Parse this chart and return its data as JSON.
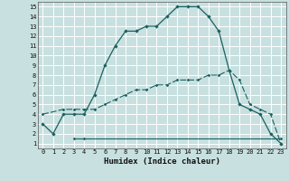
{
  "xlabel": "Humidex (Indice chaleur)",
  "bg_color": "#c8e0e0",
  "grid_color": "#ffffff",
  "line_color": "#1a6060",
  "xlim": [
    -0.5,
    23.5
  ],
  "ylim": [
    0.5,
    15.5
  ],
  "xticks": [
    0,
    1,
    2,
    3,
    4,
    5,
    6,
    7,
    8,
    9,
    10,
    11,
    12,
    13,
    14,
    15,
    16,
    17,
    18,
    19,
    20,
    21,
    22,
    23
  ],
  "yticks": [
    1,
    2,
    3,
    4,
    5,
    6,
    7,
    8,
    9,
    10,
    11,
    12,
    13,
    14,
    15
  ],
  "line1_x": [
    0,
    1,
    2,
    3,
    4,
    5,
    6,
    7,
    8,
    9,
    10,
    11,
    12,
    13,
    14,
    15,
    16,
    17,
    18,
    19,
    20,
    21,
    22,
    23
  ],
  "line1_y": [
    3,
    2,
    4,
    4,
    4,
    6,
    9,
    11,
    12.5,
    12.5,
    13,
    13,
    14,
    15,
    15,
    15,
    14,
    12.5,
    8.5,
    5,
    4.5,
    4,
    2,
    1
  ],
  "line2_x": [
    0,
    2,
    3,
    4,
    5,
    6,
    7,
    8,
    9,
    10,
    11,
    12,
    13,
    14,
    15,
    16,
    17,
    18,
    19,
    20,
    21,
    22,
    23
  ],
  "line2_y": [
    4,
    4.5,
    4.5,
    4.5,
    4.5,
    5,
    5.5,
    6,
    6.5,
    6.5,
    7,
    7,
    7.5,
    7.5,
    7.5,
    8,
    8,
    8.5,
    7.5,
    5,
    4.5,
    4,
    1
  ],
  "line3_x": [
    3,
    4,
    23
  ],
  "line3_y": [
    1.5,
    1.5,
    1.5
  ],
  "xlabel_fontsize": 6.5,
  "tick_fontsize": 5.0
}
